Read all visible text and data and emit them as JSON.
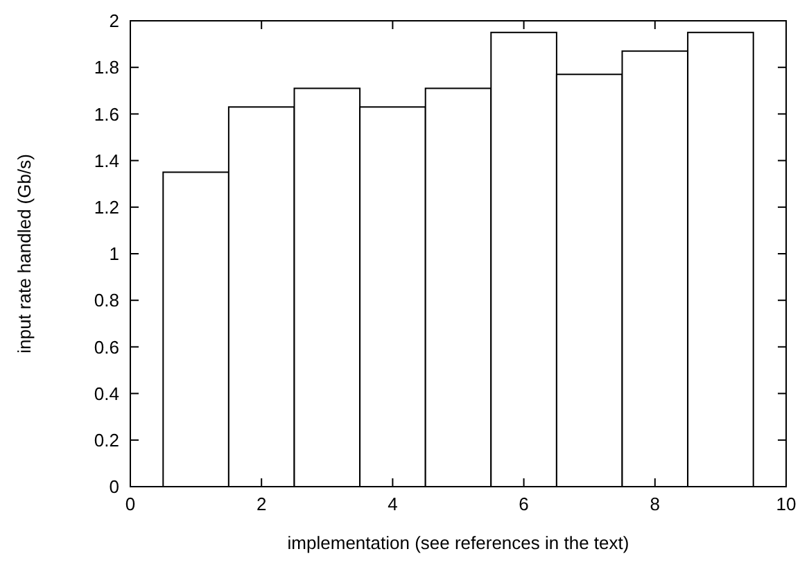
{
  "chart_data": {
    "type": "bar",
    "xlabel": "implementation (see references in the text)",
    "ylabel": "input rate handled (Gb/s)",
    "x": [
      1,
      2,
      3,
      4,
      5,
      6,
      7,
      8,
      9
    ],
    "values": [
      1.35,
      1.63,
      1.71,
      1.63,
      1.71,
      1.95,
      1.77,
      1.87,
      1.95
    ],
    "color": "#ffffff",
    "xlim": [
      0,
      10
    ],
    "xticks": [
      0,
      2,
      4,
      6,
      8,
      10
    ],
    "ylim": [
      0,
      2
    ],
    "yticks": [
      0,
      0.2,
      0.4,
      0.6,
      0.8,
      1,
      1.2,
      1.4,
      1.6,
      1.8,
      2
    ],
    "grid": false
  }
}
